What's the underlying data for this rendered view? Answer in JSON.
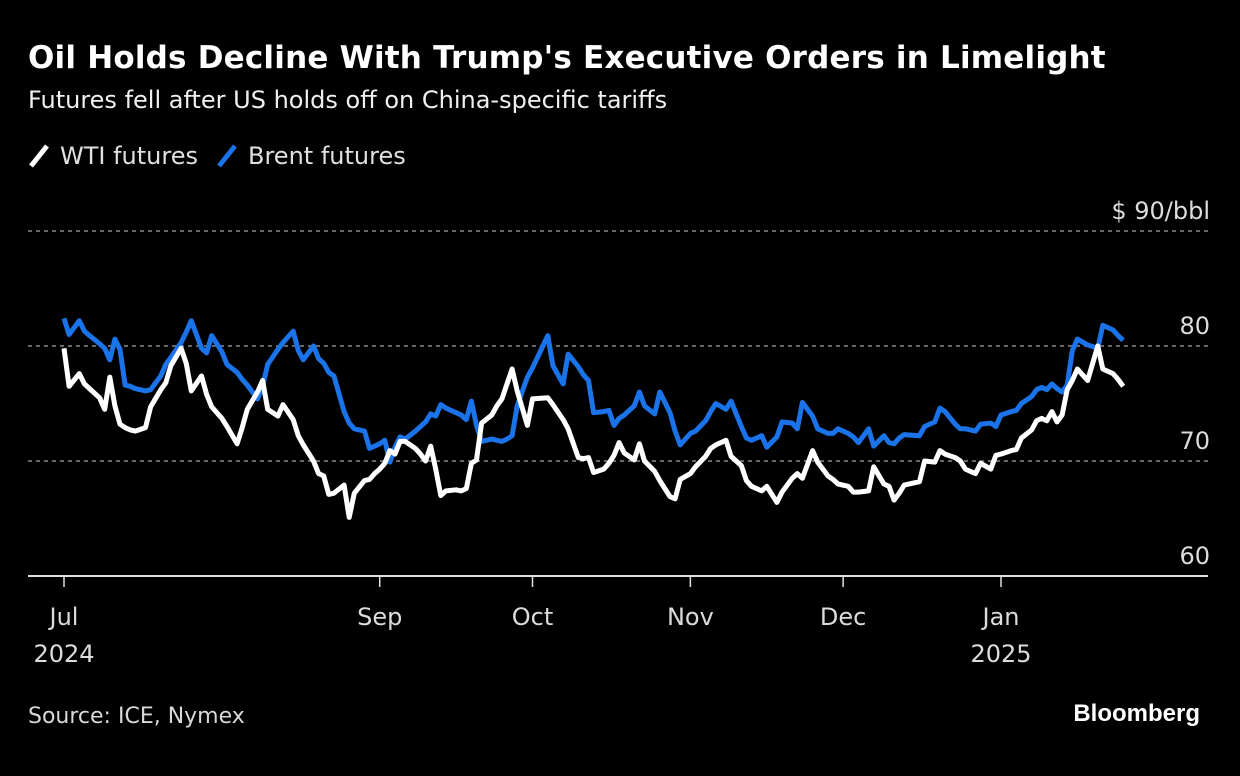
{
  "header": {
    "title": "Oil Holds Decline With Trump's Executive Orders in Limelight",
    "subtitle": "Futures fell after US holds off on China-specific tariffs"
  },
  "legend": [
    {
      "label": "WTI futures",
      "color": "#ffffff"
    },
    {
      "label": "Brent futures",
      "color": "#1a73e8"
    }
  ],
  "footer": {
    "source": "Source: ICE, Nymex",
    "brand": "Bloomberg"
  },
  "chart_data": {
    "type": "line",
    "title": "Oil Holds Decline With Trump's Executive Orders in Limelight",
    "subtitle": "Futures fell after US holds off on China-specific tariffs",
    "xlabel": "",
    "ylabel": "$/bbl",
    "y_unit_label": "$ 90/bbl",
    "ylim": [
      60,
      90
    ],
    "yticks": [
      {
        "value": 90,
        "label": "$ 90/bbl"
      },
      {
        "value": 80,
        "label": "80"
      },
      {
        "value": 70,
        "label": "70"
      },
      {
        "value": 60,
        "label": "60"
      }
    ],
    "grid": true,
    "legend_position": "top-left",
    "x_domain_days": [
      0,
      208
    ],
    "x_origin": "2024-07-01",
    "xticks": [
      {
        "day": 0,
        "label": "Jul",
        "sublabel": "2024"
      },
      {
        "day": 62,
        "label": "Sep",
        "sublabel": ""
      },
      {
        "day": 92,
        "label": "Oct",
        "sublabel": ""
      },
      {
        "day": 123,
        "label": "Nov",
        "sublabel": ""
      },
      {
        "day": 153,
        "label": "Dec",
        "sublabel": ""
      },
      {
        "day": 184,
        "label": "Jan",
        "sublabel": "2025"
      }
    ],
    "series": [
      {
        "name": "Brent futures",
        "color": "#1a73e8",
        "x_days": [
          0,
          1,
          3,
          4,
          5,
          7,
          8,
          9,
          10,
          11,
          12,
          13,
          14,
          16,
          17,
          19,
          20,
          21,
          23,
          24,
          25,
          27,
          28,
          29,
          31,
          32,
          34,
          35,
          36,
          38,
          39,
          40,
          42,
          43,
          45,
          46,
          47,
          49,
          50,
          51,
          52,
          53,
          55,
          56,
          57,
          59,
          60,
          61,
          62,
          63,
          64,
          65,
          66,
          67,
          69,
          70,
          71,
          72,
          73,
          74,
          75,
          77,
          78,
          79,
          80,
          81,
          82,
          84,
          85,
          86,
          87,
          88,
          89,
          91,
          92,
          95,
          96,
          98,
          99,
          101,
          102,
          103,
          104,
          106,
          107,
          108,
          109,
          110,
          112,
          113,
          114,
          116,
          117,
          119,
          120,
          121,
          123,
          124,
          126,
          127,
          128,
          130,
          131,
          133,
          134,
          135,
          137,
          138,
          140,
          141,
          143,
          144,
          145,
          147,
          148,
          150,
          151,
          152,
          154,
          155,
          156,
          158,
          159,
          161,
          162,
          163,
          164,
          165,
          168,
          169,
          171,
          172,
          173,
          175,
          176,
          177,
          178,
          179,
          180,
          182,
          183,
          184,
          186,
          187,
          188,
          190,
          191,
          192,
          193,
          194,
          195,
          196,
          197,
          198,
          199,
          201,
          203,
          204,
          206,
          207,
          208
        ],
        "values": [
          82.4,
          81.0,
          82.2,
          81.3,
          80.9,
          80.2,
          79.8,
          78.8,
          80.6,
          79.7,
          76.6,
          76.5,
          76.3,
          76.1,
          76.2,
          77.4,
          78.4,
          79.0,
          80.3,
          81.2,
          82.2,
          79.8,
          79.4,
          80.9,
          79.5,
          78.4,
          77.7,
          77.1,
          76.6,
          75.4,
          76.5,
          78.4,
          79.7,
          80.3,
          81.3,
          79.6,
          78.8,
          80.0,
          78.9,
          78.5,
          77.7,
          77.4,
          74.3,
          73.3,
          72.8,
          72.6,
          71.1,
          71.3,
          71.5,
          71.8,
          69.9,
          71.2,
          72.1,
          71.9,
          72.6,
          73.0,
          73.4,
          74.1,
          73.9,
          74.9,
          74.6,
          74.2,
          74.0,
          73.6,
          75.2,
          73.1,
          71.7,
          71.9,
          71.8,
          71.7,
          71.9,
          72.2,
          74.8,
          77.3,
          78.1,
          80.9,
          78.3,
          76.7,
          79.3,
          78.2,
          77.5,
          77.0,
          74.2,
          74.3,
          74.4,
          73.1,
          73.7,
          74.0,
          74.8,
          76.0,
          74.8,
          74.1,
          76.0,
          74.2,
          72.6,
          71.4,
          72.4,
          72.6,
          73.5,
          74.3,
          75.0,
          74.5,
          75.2,
          73.0,
          72.0,
          71.8,
          72.2,
          71.2,
          72.1,
          73.4,
          73.3,
          72.8,
          75.1,
          73.9,
          72.8,
          72.4,
          72.4,
          72.8,
          72.4,
          72.1,
          71.6,
          72.8,
          71.3,
          72.2,
          71.6,
          71.5,
          72.0,
          72.3,
          72.2,
          73.0,
          73.4,
          74.6,
          74.3,
          73.2,
          72.8,
          72.8,
          72.7,
          72.6,
          73.2,
          73.3,
          73.0,
          74.0,
          74.3,
          74.4,
          75.0,
          75.6,
          76.2,
          76.4,
          76.2,
          76.7,
          76.3,
          76.0,
          76.6,
          79.6,
          80.6,
          80.1,
          79.8,
          81.8,
          81.4,
          80.9,
          80.5,
          80.1
        ]
      },
      {
        "name": "WTI futures",
        "color": "#ffffff",
        "x_days": [
          0,
          1,
          3,
          4,
          5,
          7,
          8,
          9,
          10,
          11,
          12,
          13,
          14,
          16,
          17,
          19,
          20,
          21,
          23,
          24,
          25,
          27,
          28,
          29,
          31,
          32,
          34,
          35,
          36,
          38,
          39,
          40,
          42,
          43,
          45,
          46,
          47,
          49,
          50,
          51,
          52,
          53,
          55,
          56,
          57,
          59,
          60,
          61,
          62,
          63,
          64,
          65,
          66,
          67,
          69,
          70,
          71,
          72,
          73,
          74,
          75,
          77,
          78,
          79,
          80,
          81,
          82,
          84,
          85,
          86,
          87,
          88,
          89,
          91,
          92,
          95,
          96,
          98,
          99,
          101,
          102,
          103,
          104,
          106,
          107,
          108,
          109,
          110,
          112,
          113,
          114,
          116,
          117,
          119,
          120,
          121,
          123,
          124,
          126,
          127,
          128,
          130,
          131,
          133,
          134,
          135,
          137,
          138,
          140,
          141,
          143,
          144,
          145,
          147,
          148,
          150,
          151,
          152,
          154,
          155,
          156,
          158,
          159,
          161,
          162,
          163,
          164,
          165,
          168,
          169,
          171,
          172,
          173,
          175,
          176,
          177,
          178,
          179,
          180,
          182,
          183,
          184,
          186,
          187,
          188,
          190,
          191,
          192,
          193,
          194,
          195,
          196,
          197,
          198,
          199,
          201,
          203,
          204,
          206,
          207,
          208
        ],
        "values": [
          79.8,
          76.5,
          77.6,
          76.7,
          76.3,
          75.5,
          74.5,
          77.3,
          74.8,
          73.2,
          72.9,
          72.7,
          72.6,
          72.9,
          74.7,
          76.2,
          76.8,
          78.3,
          79.8,
          78.5,
          76.1,
          77.4,
          75.8,
          74.7,
          73.7,
          73.0,
          71.5,
          72.9,
          74.5,
          76.0,
          77.0,
          74.5,
          73.9,
          74.9,
          73.6,
          72.2,
          71.4,
          70.0,
          68.9,
          68.7,
          67.1,
          67.2,
          67.9,
          65.1,
          67.2,
          68.3,
          68.4,
          68.9,
          69.3,
          69.8,
          70.9,
          70.6,
          71.7,
          71.7,
          71.1,
          70.6,
          70.0,
          71.3,
          69.3,
          67.0,
          67.4,
          67.5,
          67.4,
          67.6,
          69.8,
          70.1,
          73.3,
          74.0,
          74.8,
          75.4,
          76.7,
          78.0,
          76.1,
          73.1,
          75.4,
          75.5,
          74.9,
          73.6,
          72.8,
          70.3,
          70.2,
          70.3,
          69.0,
          69.3,
          69.8,
          70.5,
          71.6,
          70.7,
          70.1,
          71.5,
          70.0,
          69.1,
          68.3,
          66.9,
          66.7,
          68.4,
          68.9,
          69.5,
          70.4,
          71.1,
          71.4,
          71.8,
          70.4,
          69.6,
          68.3,
          67.8,
          67.4,
          67.8,
          66.4,
          67.3,
          68.5,
          68.9,
          68.5,
          70.9,
          69.9,
          68.7,
          68.4,
          68.0,
          67.8,
          67.3,
          67.3,
          67.4,
          69.5,
          68.0,
          67.8,
          66.6,
          67.2,
          67.9,
          68.2,
          70.0,
          69.9,
          70.9,
          70.6,
          70.3,
          70.0,
          69.3,
          69.1,
          68.9,
          69.8,
          69.3,
          70.5,
          70.6,
          70.9,
          71.0,
          72.0,
          72.7,
          73.5,
          73.7,
          73.5,
          74.3,
          73.4,
          74.0,
          76.2,
          77.0,
          78.0,
          77.0,
          80.0,
          78.0,
          77.6,
          77.1,
          76.5
        ]
      }
    ]
  }
}
